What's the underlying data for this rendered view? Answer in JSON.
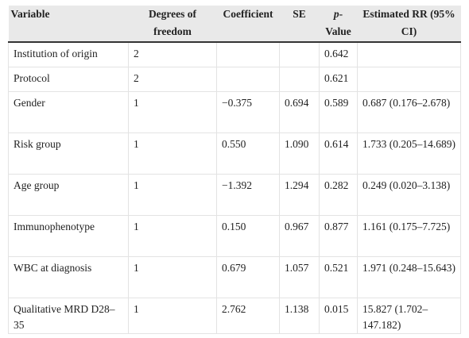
{
  "headers": {
    "variable": "Variable",
    "df": "Degrees of freedom",
    "coef": "Coefficient",
    "se": "SE",
    "p_italic": "p",
    "p_rest": "-Value",
    "rr": "Estimated RR (95% CI)"
  },
  "rows": [
    {
      "variable": "Institution of origin",
      "df": "2",
      "coef": "",
      "se": "",
      "p": "0.642",
      "rr": ""
    },
    {
      "variable": "Protocol",
      "df": "2",
      "coef": "",
      "se": "",
      "p": "0.621",
      "rr": ""
    },
    {
      "variable": "Gender",
      "df": "1",
      "coef": "−0.375",
      "se": "0.694",
      "p": "0.589",
      "rr": "0.687 (0.176–2.678)"
    },
    {
      "variable": "Risk group",
      "df": "1",
      "coef": "0.550",
      "se": "1.090",
      "p": "0.614",
      "rr": "1.733 (0.205–14.689)"
    },
    {
      "variable": "Age group",
      "df": "1",
      "coef": "−1.392",
      "se": "1.294",
      "p": "0.282",
      "rr": "0.249 (0.020–3.138)"
    },
    {
      "variable": "Immunophenotype",
      "df": "1",
      "coef": "0.150",
      "se": "0.967",
      "p": "0.877",
      "rr": "1.161 (0.175–7.725)"
    },
    {
      "variable": "WBC at diagnosis",
      "df": "1",
      "coef": "0.679",
      "se": "1.057",
      "p": "0.521",
      "rr": "1.971 (0.248–15.643)"
    },
    {
      "variable": "Qualitative MRD D28–35",
      "df": "1",
      "coef": "2.762",
      "se": "1.138",
      "p": "0.015",
      "rr": "15.827 (1.702–147.182)"
    }
  ]
}
